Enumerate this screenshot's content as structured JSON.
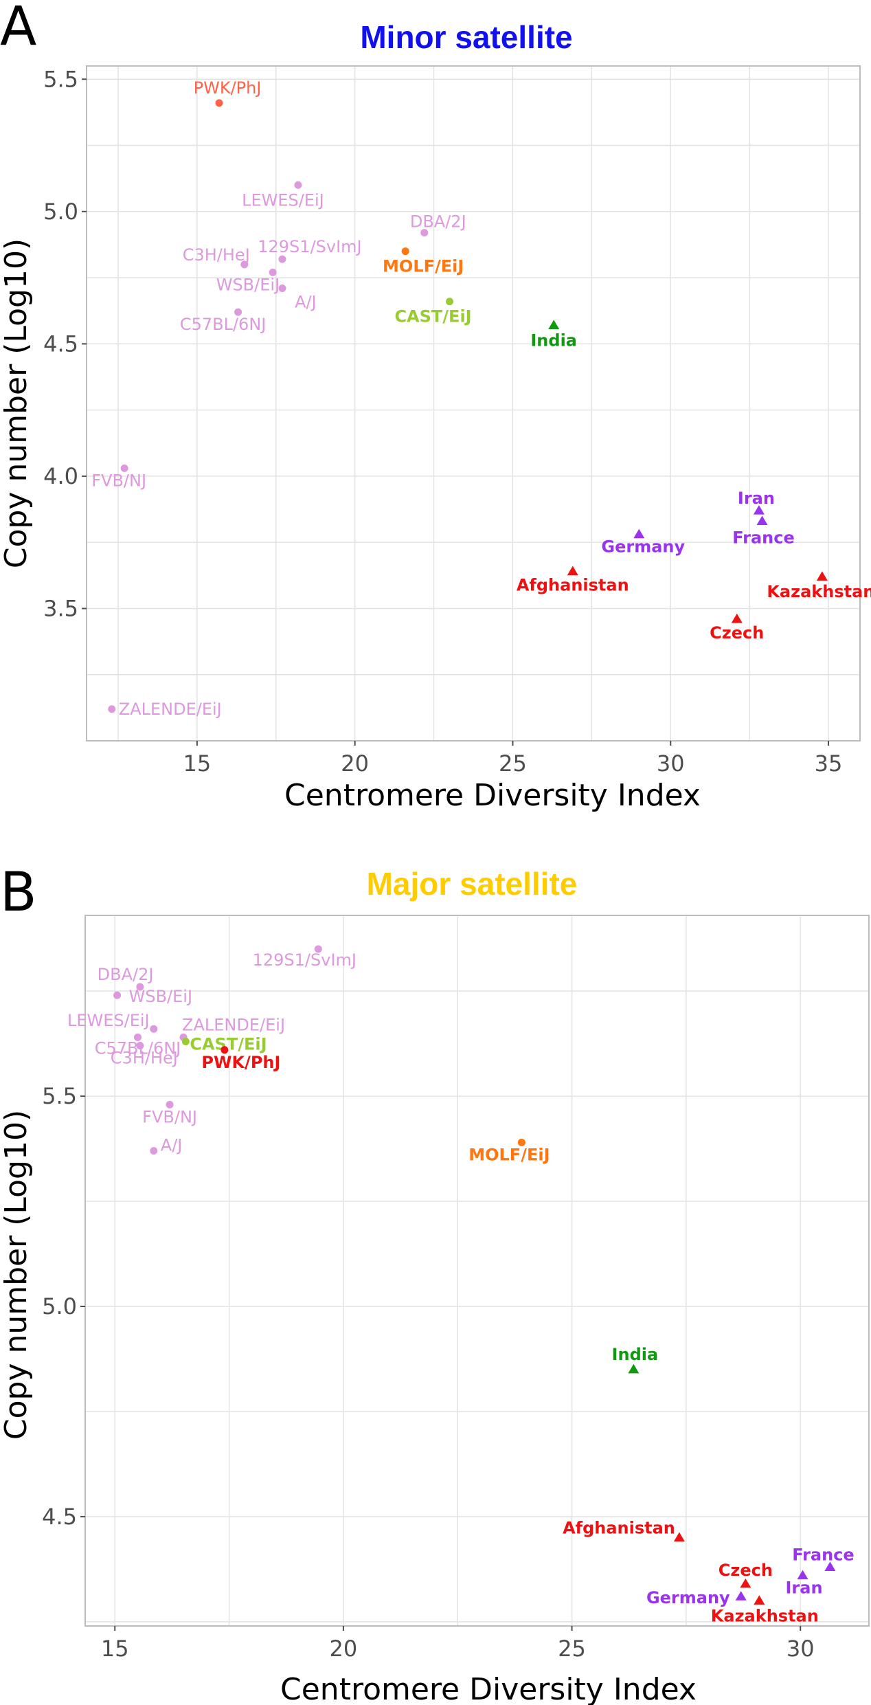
{
  "colors": {
    "inbred": "#dd99dd",
    "pwk": "#ff6347",
    "molf": "#ff7711",
    "cast": "#99cc33",
    "india": "#119911",
    "iran_france_germany": "#9933ee",
    "red_group": "#ee1111",
    "title_minor": "#1111ee",
    "title_major": "#ffcc00"
  },
  "chart_data": [
    {
      "panel_label": "A",
      "type": "scatter",
      "title": "Minor satellite",
      "title_color": "#1111ee",
      "xlabel": "Centromere Diversity Index",
      "ylabel": "Copy number (Log10)",
      "xlim": [
        11.5,
        36.0
      ],
      "ylim": [
        3.0,
        5.55
      ],
      "xticks": [
        15,
        20,
        25,
        30,
        35
      ],
      "yticks": [
        3.5,
        4.0,
        4.5,
        5.0,
        5.5
      ],
      "xtick_labels": [
        "15",
        "20",
        "25",
        "30",
        "35"
      ],
      "ytick_labels": [
        "3.5",
        "4.0",
        "4.5",
        "5.0",
        "5.5"
      ],
      "grid": true,
      "points": [
        {
          "label": "PWK/PhJ",
          "x": 15.7,
          "y": 5.41,
          "marker": "circle",
          "color": "#ff6347",
          "bold": false,
          "anchor": "middle",
          "dx": 12,
          "dy": -14
        },
        {
          "label": "LEWES/EiJ",
          "x": 18.2,
          "y": 5.1,
          "marker": "circle",
          "color": "#dd99dd",
          "bold": false,
          "anchor": "middle",
          "dx": -22,
          "dy": 30
        },
        {
          "label": "DBA/2J",
          "x": 22.2,
          "y": 4.92,
          "marker": "circle",
          "color": "#dd99dd",
          "bold": false,
          "anchor": "middle",
          "dx": 20,
          "dy": -8
        },
        {
          "label": "C3H/HeJ",
          "x": 16.5,
          "y": 4.8,
          "marker": "circle",
          "color": "#dd99dd",
          "bold": false,
          "anchor": "end",
          "dx": 8,
          "dy": -6
        },
        {
          "label": "129S1/SvImJ",
          "x": 17.7,
          "y": 4.82,
          "marker": "circle",
          "color": "#dd99dd",
          "bold": false,
          "anchor": "middle",
          "dx": 40,
          "dy": -10
        },
        {
          "label": "MOLF/EiJ",
          "x": 21.6,
          "y": 4.85,
          "marker": "circle",
          "color": "#ff7711",
          "bold": true,
          "anchor": "middle",
          "dx": 26,
          "dy": 30
        },
        {
          "label": "WSB/EiJ",
          "x": 17.4,
          "y": 4.77,
          "marker": "circle",
          "color": "#dd99dd",
          "bold": false,
          "anchor": "end",
          "dx": 10,
          "dy": 26
        },
        {
          "label": "A/J",
          "x": 17.7,
          "y": 4.71,
          "marker": "circle",
          "color": "#dd99dd",
          "bold": false,
          "anchor": "middle",
          "dx": 34,
          "dy": 28
        },
        {
          "label": "C57BL/6NJ",
          "x": 16.3,
          "y": 4.62,
          "marker": "circle",
          "color": "#dd99dd",
          "bold": false,
          "anchor": "middle",
          "dx": -22,
          "dy": 26
        },
        {
          "label": "CAST/EiJ",
          "x": 23.0,
          "y": 4.66,
          "marker": "circle",
          "color": "#99cc33",
          "bold": true,
          "anchor": "middle",
          "dx": -24,
          "dy": 30
        },
        {
          "label": "India",
          "x": 26.3,
          "y": 4.57,
          "marker": "triangle",
          "color": "#119911",
          "bold": true,
          "anchor": "middle",
          "dx": 0,
          "dy": 30
        },
        {
          "label": "FVB/NJ",
          "x": 12.7,
          "y": 4.03,
          "marker": "circle",
          "color": "#dd99dd",
          "bold": false,
          "anchor": "middle",
          "dx": -8,
          "dy": 26
        },
        {
          "label": "Iran",
          "x": 32.8,
          "y": 3.87,
          "marker": "triangle",
          "color": "#9933ee",
          "bold": true,
          "anchor": "middle",
          "dx": -4,
          "dy": -10
        },
        {
          "label": "France",
          "x": 32.9,
          "y": 3.83,
          "marker": "triangle",
          "color": "#9933ee",
          "bold": true,
          "anchor": "middle",
          "dx": 2,
          "dy": 32
        },
        {
          "label": "Germany",
          "x": 29.0,
          "y": 3.78,
          "marker": "triangle",
          "color": "#9933ee",
          "bold": true,
          "anchor": "middle",
          "dx": 6,
          "dy": 26
        },
        {
          "label": "Afghanistan",
          "x": 26.9,
          "y": 3.64,
          "marker": "triangle",
          "color": "#ee1111",
          "bold": true,
          "anchor": "middle",
          "dx": 0,
          "dy": 28
        },
        {
          "label": "Kazakhstan",
          "x": 34.8,
          "y": 3.62,
          "marker": "triangle",
          "color": "#ee1111",
          "bold": true,
          "anchor": "middle",
          "dx": -2,
          "dy": 30
        },
        {
          "label": "Czech",
          "x": 32.1,
          "y": 3.46,
          "marker": "triangle",
          "color": "#ee1111",
          "bold": true,
          "anchor": "middle",
          "dx": 0,
          "dy": 28
        },
        {
          "label": "ZALENDE/EiJ",
          "x": 12.3,
          "y": 3.12,
          "marker": "circle",
          "color": "#dd99dd",
          "bold": false,
          "anchor": "start",
          "dx": 10,
          "dy": 8
        }
      ]
    },
    {
      "panel_label": "B",
      "type": "scatter",
      "title": "Major satellite",
      "title_color": "#ffcc00",
      "xlabel": "Centromere Diversity Index",
      "ylabel": "Copy number (Log10)",
      "xlim": [
        14.35,
        31.5
      ],
      "ylim": [
        4.24,
        5.93
      ],
      "xticks": [
        15,
        20,
        25,
        30
      ],
      "yticks": [
        4.5,
        5.0,
        5.5
      ],
      "xtick_labels": [
        "15",
        "20",
        "25",
        "30"
      ],
      "ytick_labels": [
        "4.5",
        "5.0",
        "5.5"
      ],
      "grid": true,
      "points": [
        {
          "label": "129S1/SvImJ",
          "x": 19.45,
          "y": 5.85,
          "marker": "circle",
          "color": "#dd99dd",
          "bold": false,
          "anchor": "middle",
          "dx": -20,
          "dy": 24
        },
        {
          "label": "DBA/2J",
          "x": 15.05,
          "y": 5.74,
          "marker": "circle",
          "color": "#dd99dd",
          "bold": false,
          "anchor": "middle",
          "dx": 12,
          "dy": -22
        },
        {
          "label": "WSB/EiJ",
          "x": 15.55,
          "y": 5.76,
          "marker": "circle",
          "color": "#dd99dd",
          "bold": false,
          "anchor": "middle",
          "dx": 30,
          "dy": 22
        },
        {
          "label": "LEWES/EiJ",
          "x": 15.85,
          "y": 5.66,
          "marker": "circle",
          "color": "#dd99dd",
          "bold": false,
          "anchor": "middle",
          "dx": -66,
          "dy": -4
        },
        {
          "label": "ZALENDE/EiJ",
          "x": 16.5,
          "y": 5.64,
          "marker": "circle",
          "color": "#dd99dd",
          "bold": false,
          "anchor": "start",
          "dx": -2,
          "dy": -10
        },
        {
          "label": "CAST/EiJ",
          "x": 16.55,
          "y": 5.63,
          "marker": "circle",
          "color": "#99cc33",
          "bold": true,
          "anchor": "start",
          "dx": 6,
          "dy": 12
        },
        {
          "label": "C57BL/6NJ",
          "x": 15.5,
          "y": 5.64,
          "marker": "circle",
          "color": "#dd99dd",
          "bold": false,
          "anchor": "middle",
          "dx": 0,
          "dy": 24
        },
        {
          "label": "C3H/HeJ",
          "x": 15.55,
          "y": 5.62,
          "marker": "circle",
          "color": "#dd99dd",
          "bold": false,
          "anchor": "middle",
          "dx": 6,
          "dy": 26
        },
        {
          "label": "PWK/PhJ",
          "x": 17.4,
          "y": 5.61,
          "marker": "circle",
          "color": "#ee1111",
          "bold": true,
          "anchor": "middle",
          "dx": 24,
          "dy": 26
        },
        {
          "label": "FVB/NJ",
          "x": 16.2,
          "y": 5.48,
          "marker": "circle",
          "color": "#dd99dd",
          "bold": false,
          "anchor": "middle",
          "dx": 0,
          "dy": 26
        },
        {
          "label": "A/J",
          "x": 15.85,
          "y": 5.37,
          "marker": "circle",
          "color": "#dd99dd",
          "bold": false,
          "anchor": "start",
          "dx": 10,
          "dy": 0
        },
        {
          "label": "MOLF/EiJ",
          "x": 23.9,
          "y": 5.39,
          "marker": "circle",
          "color": "#ff7711",
          "bold": true,
          "anchor": "middle",
          "dx": -18,
          "dy": 26
        },
        {
          "label": "India",
          "x": 26.35,
          "y": 4.85,
          "marker": "triangle",
          "color": "#119911",
          "bold": true,
          "anchor": "middle",
          "dx": 2,
          "dy": -14
        },
        {
          "label": "Afghanistan",
          "x": 27.35,
          "y": 4.45,
          "marker": "triangle",
          "color": "#ee1111",
          "bold": true,
          "anchor": "end",
          "dx": -6,
          "dy": -6
        },
        {
          "label": "France",
          "x": 30.65,
          "y": 4.38,
          "marker": "triangle",
          "color": "#9933ee",
          "bold": true,
          "anchor": "middle",
          "dx": -10,
          "dy": -10
        },
        {
          "label": "Czech",
          "x": 28.8,
          "y": 4.34,
          "marker": "triangle",
          "color": "#ee1111",
          "bold": true,
          "anchor": "middle",
          "dx": 0,
          "dy": -12
        },
        {
          "label": "Iran",
          "x": 30.05,
          "y": 4.36,
          "marker": "triangle",
          "color": "#9933ee",
          "bold": true,
          "anchor": "middle",
          "dx": 2,
          "dy": 26
        },
        {
          "label": "Germany",
          "x": 28.7,
          "y": 4.31,
          "marker": "triangle",
          "color": "#9933ee",
          "bold": true,
          "anchor": "end",
          "dx": -16,
          "dy": 10
        },
        {
          "label": "Kazakhstan",
          "x": 29.1,
          "y": 4.3,
          "marker": "triangle",
          "color": "#ee1111",
          "bold": true,
          "anchor": "middle",
          "dx": 8,
          "dy": 30
        }
      ]
    }
  ]
}
